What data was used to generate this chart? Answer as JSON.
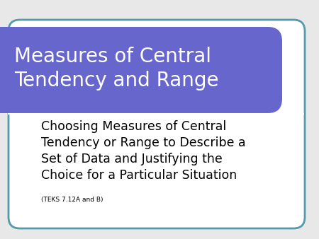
{
  "title_text": "Measures of Central\nTendency and Range",
  "subtitle_text": "Choosing Measures of Central\nTendency or Range to Describe a\nSet of Data and Justifying the\nChoice for a Particular Situation",
  "footnote_text": "(TEKS 7.12A and B)",
  "bg_color": "#f0f0f0",
  "slide_bg": "#e8e8e8",
  "title_banner_color": "#6666cc",
  "title_text_color": "#ffffff",
  "subtitle_text_color": "#000000",
  "card_border_color": "#5599aa",
  "card_fill_color": "#ffffff",
  "title_fontsize": 20,
  "subtitle_fontsize": 12.5,
  "footnote_fontsize": 6.5
}
